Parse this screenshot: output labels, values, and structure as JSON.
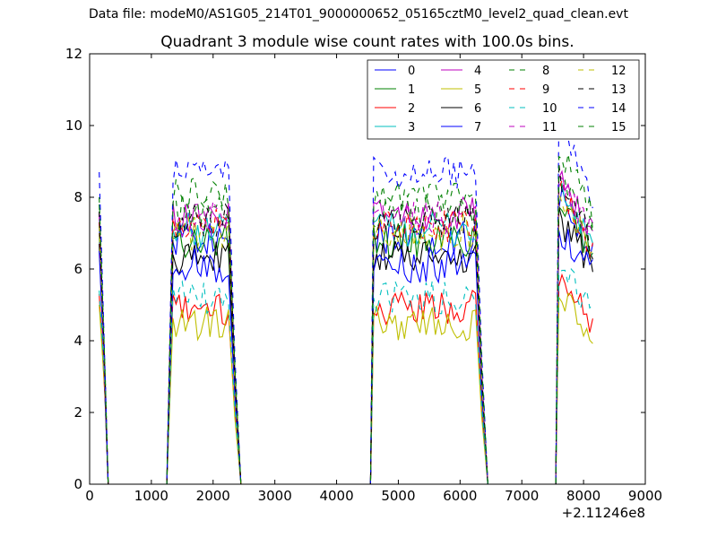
{
  "figure": {
    "suptitle": "Data file: modeM0/AS1G05_214T01_9000000652_05165cztM0_level2_quad_clean.evt"
  },
  "chart_data": {
    "type": "line",
    "title": "Quadrant 3 module wise count rates with 100.0s bins.",
    "xlabel": "",
    "ylabel": "",
    "xlim": [
      0,
      9000
    ],
    "ylim": [
      0,
      12
    ],
    "x_offset_label": "+2.11246e8",
    "xticks": [
      0,
      1000,
      2000,
      3000,
      4000,
      5000,
      6000,
      7000,
      8000,
      9000
    ],
    "yticks": [
      0,
      2,
      4,
      6,
      8,
      10,
      12
    ],
    "grid": false,
    "legend_position": "top-right",
    "legend_columns": 4,
    "segments": [
      {
        "x": [
          155,
          255,
          300
        ]
      },
      {
        "x": [
          1250,
          1350,
          1400,
          1450,
          1500,
          1550,
          1600,
          1650,
          1700,
          1750,
          1800,
          1850,
          1900,
          1950,
          2000,
          2050,
          2100,
          2150,
          2200,
          2250,
          2350,
          2450
        ]
      },
      {
        "x": [
          4550,
          4600,
          4650,
          4700,
          4750,
          4800,
          4850,
          4900,
          4950,
          5000,
          5050,
          5100,
          5150,
          5200,
          5250,
          5300,
          5350,
          5400,
          5450,
          5500,
          5550,
          5600,
          5650,
          5700,
          5750,
          5800,
          5850,
          5900,
          5950,
          6000,
          6050,
          6100,
          6150,
          6200,
          6250,
          6350,
          6450
        ]
      },
      {
        "x": [
          7550,
          7600,
          7650,
          7700,
          7750,
          7800,
          7850,
          7900,
          7950,
          8000,
          8050,
          8100,
          8150
        ]
      }
    ],
    "series": [
      {
        "name": "0",
        "color": "#0000ff",
        "dash": "solid",
        "level": 6.9,
        "first": 7.2,
        "last": 6.5
      },
      {
        "name": "1",
        "color": "#008000",
        "dash": "solid",
        "level": 6.8,
        "first": 7.0,
        "last": 6.3
      },
      {
        "name": "2",
        "color": "#ff0000",
        "dash": "solid",
        "level": 4.9,
        "first": 5.3,
        "last": 4.5
      },
      {
        "name": "3",
        "color": "#00bfbf",
        "dash": "solid",
        "level": 7.1,
        "first": 7.4,
        "last": 6.6
      },
      {
        "name": "4",
        "color": "#bf00bf",
        "dash": "solid",
        "level": 7.5,
        "first": 7.6,
        "last": 6.8
      },
      {
        "name": "5",
        "color": "#bfbf00",
        "dash": "solid",
        "level": 4.5,
        "first": 5.0,
        "last": 4.1
      },
      {
        "name": "6",
        "color": "#000000",
        "dash": "solid",
        "level": 6.3,
        "first": 6.7,
        "last": 6.1
      },
      {
        "name": "7",
        "color": "#0000ff",
        "dash": "solid",
        "level": 6.1,
        "first": 6.5,
        "last": 5.9
      },
      {
        "name": "8",
        "color": "#008000",
        "dash": "dashed",
        "level": 7.6,
        "first": 7.8,
        "last": 6.9
      },
      {
        "name": "9",
        "color": "#ff0000",
        "dash": "dashed",
        "level": 7.2,
        "first": 7.3,
        "last": 6.6
      },
      {
        "name": "10",
        "color": "#00bfbf",
        "dash": "dashed",
        "level": 5.2,
        "first": 5.4,
        "last": 4.9
      },
      {
        "name": "11",
        "color": "#bf00bf",
        "dash": "dashed",
        "level": 7.4,
        "first": 7.5,
        "last": 6.9
      },
      {
        "name": "12",
        "color": "#bfbf00",
        "dash": "dashed",
        "level": 7.0,
        "first": 7.2,
        "last": 6.4
      },
      {
        "name": "13",
        "color": "#000000",
        "dash": "dashed",
        "level": 7.3,
        "first": 7.6,
        "last": 6.7
      },
      {
        "name": "14",
        "color": "#0000ff",
        "dash": "dashed",
        "level": 8.7,
        "first": 8.7,
        "last": 7.9
      },
      {
        "name": "15",
        "color": "#008000",
        "dash": "dashed",
        "level": 8.1,
        "first": 8.0,
        "last": 7.4
      }
    ]
  }
}
